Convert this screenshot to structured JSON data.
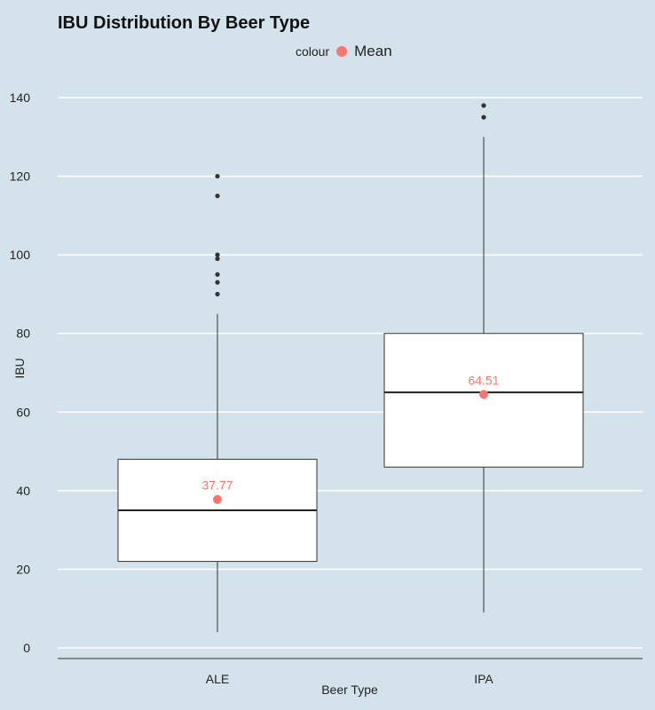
{
  "chart_data": {
    "type": "box",
    "title": "IBU Distribution By Beer Type",
    "xlabel": "Beer Type",
    "ylabel": "IBU",
    "ylim": [
      -3,
      145
    ],
    "yticks": [
      0,
      20,
      40,
      60,
      80,
      100,
      120,
      140
    ],
    "grid": "horizontal major only",
    "legend": {
      "title": "colour",
      "entries": [
        "Mean"
      ],
      "position": "top"
    },
    "categories": [
      "ALE",
      "IPA"
    ],
    "boxes": [
      {
        "category": "ALE",
        "lower_whisker": 4,
        "q1": 22,
        "median": 35,
        "q3": 48,
        "upper_whisker": 85,
        "outliers": [
          90,
          93,
          95,
          99,
          100,
          115,
          120
        ],
        "mean": 37.77,
        "mean_label": "37.77"
      },
      {
        "category": "IPA",
        "lower_whisker": 9,
        "q1": 46,
        "median": 65,
        "q3": 80,
        "upper_whisker": 130,
        "outliers": [
          135,
          138
        ],
        "mean": 64.51,
        "mean_label": "64.51"
      }
    ],
    "colors": {
      "mean": "#f8766d",
      "background": "#d4e3eb",
      "grid": "#ffffff",
      "box_fill": "#ffffff",
      "box_line": "#333333"
    }
  }
}
